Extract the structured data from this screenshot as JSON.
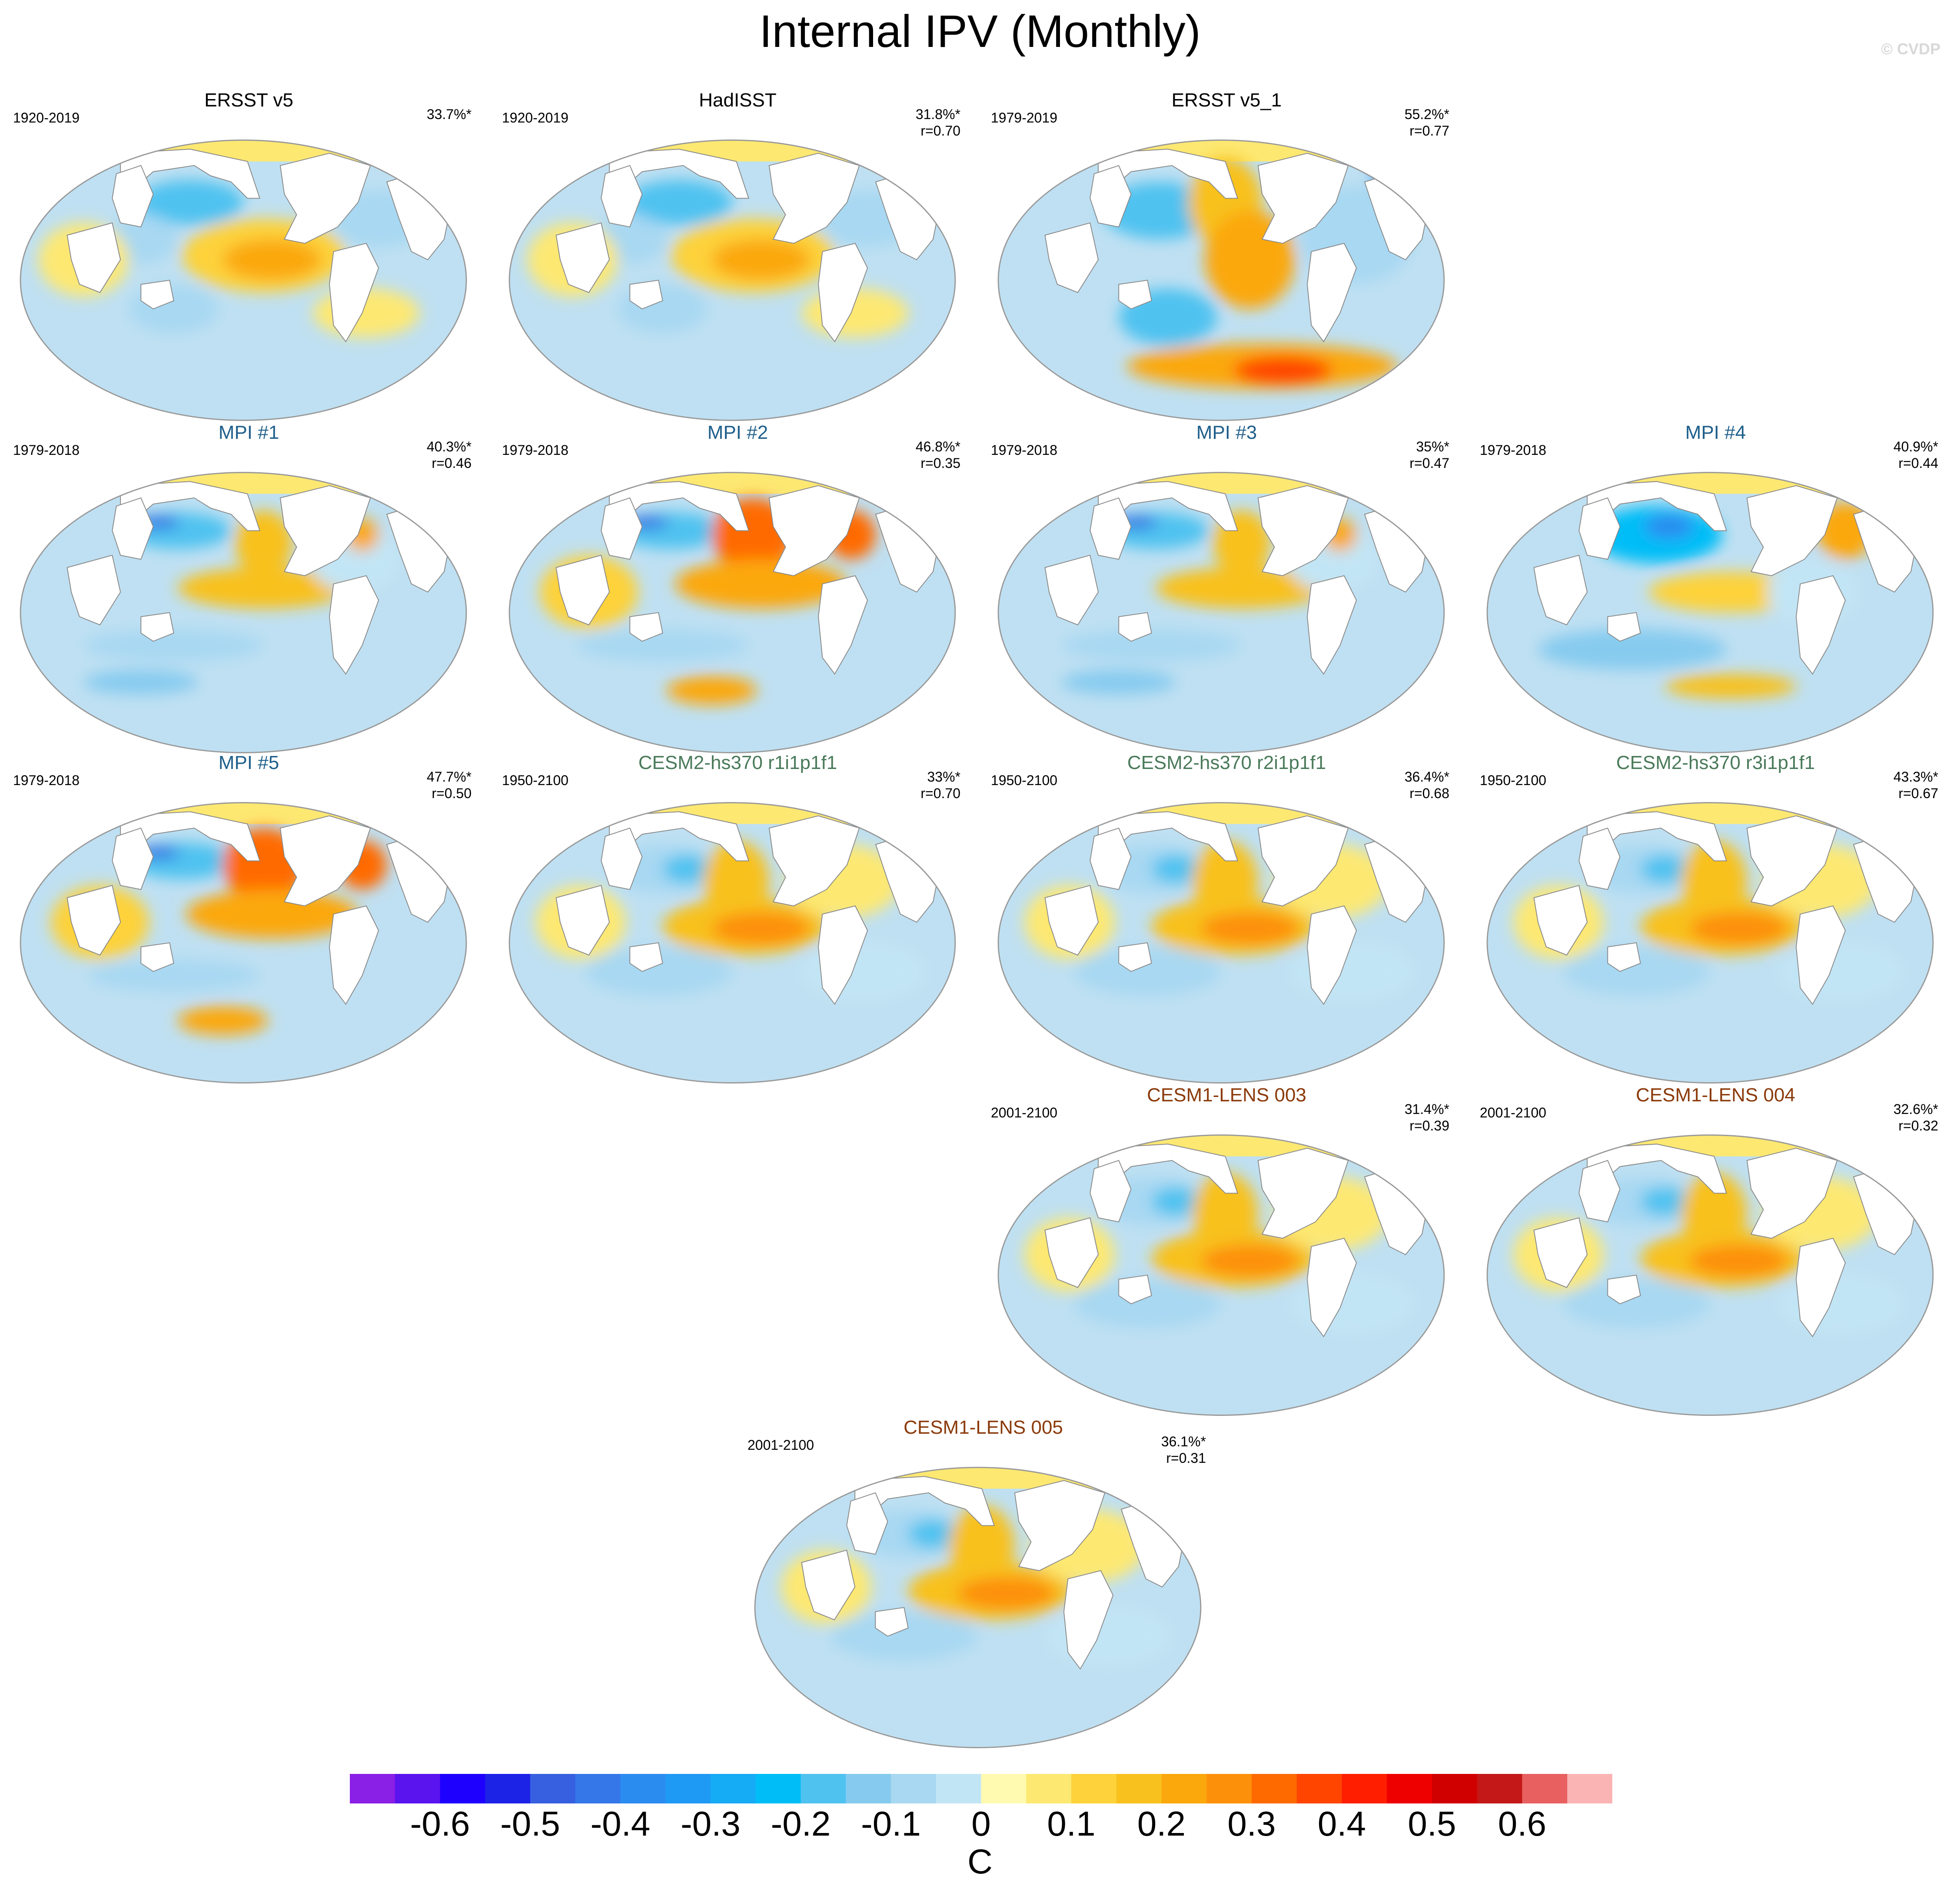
{
  "figure": {
    "title": "Internal IPV (Monthly)",
    "copyright": "© CVDP"
  },
  "colors": {
    "obs_title": "#000000",
    "mpi_title": "#1f5f8b",
    "cesm2_title": "#4a7a5a",
    "lens_title": "#8b3a0a",
    "ocean_neutral": "#bfe0f2",
    "land": "#ffffff"
  },
  "panels": [
    {
      "id": "ersst-v5",
      "title": "ERSST v5",
      "title_color": "#000000",
      "period": "1920-2019",
      "variance": "33.7%*",
      "corr": "",
      "pattern": "obs"
    },
    {
      "id": "hadisst",
      "title": "HadISST",
      "title_color": "#000000",
      "period": "1920-2019",
      "variance": "31.8%*",
      "corr": "r=0.70",
      "pattern": "obs"
    },
    {
      "id": "ersst-v5-1",
      "title": "ERSST v5_1",
      "title_color": "#000000",
      "period": "1979-2019",
      "variance": "55.2%*",
      "corr": "r=0.77",
      "pattern": "strong"
    },
    {
      "id": "mpi-1",
      "title": "MPI #1",
      "title_color": "#1f5f8b",
      "period": "1979-2018",
      "variance": "40.3%*",
      "corr": "r=0.46",
      "pattern": "mpi"
    },
    {
      "id": "mpi-2",
      "title": "MPI #2",
      "title_color": "#1f5f8b",
      "period": "1979-2018",
      "variance": "46.8%*",
      "corr": "r=0.35",
      "pattern": "mpi-warm"
    },
    {
      "id": "mpi-3",
      "title": "MPI #3",
      "title_color": "#1f5f8b",
      "period": "1979-2018",
      "variance": "35%*",
      "corr": "r=0.47",
      "pattern": "mpi"
    },
    {
      "id": "mpi-4",
      "title": "MPI #4",
      "title_color": "#1f5f8b",
      "period": "1979-2018",
      "variance": "40.9%*",
      "corr": "r=0.44",
      "pattern": "mpi-cool"
    },
    {
      "id": "mpi-5",
      "title": "MPI #5",
      "title_color": "#1f5f8b",
      "period": "1979-2018",
      "variance": "47.7%*",
      "corr": "r=0.50",
      "pattern": "mpi-warm"
    },
    {
      "id": "cesm2-r1",
      "title": "CESM2-hs370 r1i1p1f1",
      "title_color": "#4a7a5a",
      "period": "1950-2100",
      "variance": "33%*",
      "corr": "r=0.70",
      "pattern": "model"
    },
    {
      "id": "cesm2-r2",
      "title": "CESM2-hs370 r2i1p1f1",
      "title_color": "#4a7a5a",
      "period": "1950-2100",
      "variance": "36.4%*",
      "corr": "r=0.68",
      "pattern": "model"
    },
    {
      "id": "cesm2-r3",
      "title": "CESM2-hs370 r3i1p1f1",
      "title_color": "#4a7a5a",
      "period": "1950-2100",
      "variance": "43.3%*",
      "corr": "r=0.67",
      "pattern": "model"
    },
    {
      "id": "lens-003",
      "title": "CESM1-LENS 003",
      "title_color": "#8b3a0a",
      "period": "2001-2100",
      "variance": "31.4%*",
      "corr": "r=0.39",
      "pattern": "model"
    },
    {
      "id": "lens-004",
      "title": "CESM1-LENS 004",
      "title_color": "#8b3a0a",
      "period": "2001-2100",
      "variance": "32.6%*",
      "corr": "r=0.32",
      "pattern": "model"
    },
    {
      "id": "lens-005",
      "title": "CESM1-LENS 005",
      "title_color": "#8b3a0a",
      "period": "2001-2100",
      "variance": "36.1%*",
      "corr": "r=0.31",
      "pattern": "model"
    }
  ],
  "chart_data": {
    "type": "heatmap",
    "title": "Internal IPV (Monthly)",
    "units": "C",
    "colorbar": {
      "levels": [
        -0.65,
        -0.6,
        -0.55,
        -0.5,
        -0.45,
        -0.4,
        -0.35,
        -0.3,
        -0.25,
        -0.2,
        -0.15,
        -0.1,
        -0.05,
        0,
        0.05,
        0.1,
        0.15,
        0.2,
        0.25,
        0.3,
        0.35,
        0.4,
        0.45,
        0.5,
        0.55,
        0.6,
        0.65
      ],
      "colors": [
        "#8a1fe6",
        "#5a14ee",
        "#1e00ff",
        "#1c23e6",
        "#3660e0",
        "#3577e8",
        "#2b8cf0",
        "#1e9af5",
        "#16abf5",
        "#00bdf7",
        "#50c2f0",
        "#86cbef",
        "#a8d8f2",
        "#c2e5f5",
        "#fffab0",
        "#fde872",
        "#fdd23a",
        "#f8c11e",
        "#fba80c",
        "#fd900a",
        "#ff6a00",
        "#ff4500",
        "#ff1e00",
        "#ee0000",
        "#d10000",
        "#c41818",
        "#e86060",
        "#fbb4b4"
      ],
      "tick_labels": [
        "-0.6",
        "-0.5",
        "-0.4",
        "-0.3",
        "-0.2",
        "-0.1",
        "0",
        "0.1",
        "0.2",
        "0.3",
        "0.4",
        "0.5",
        "0.6"
      ],
      "tick_values": [
        -0.6,
        -0.5,
        -0.4,
        -0.3,
        -0.2,
        -0.1,
        0,
        0.1,
        0.2,
        0.3,
        0.4,
        0.5,
        0.6
      ]
    }
  }
}
